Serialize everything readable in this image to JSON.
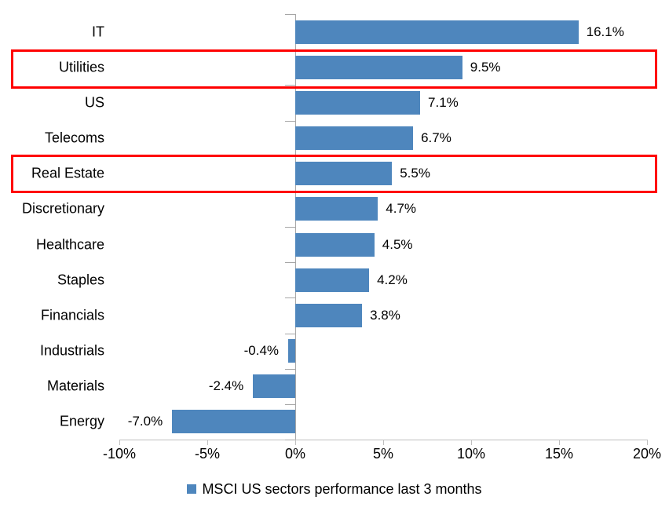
{
  "chart_data": {
    "type": "bar",
    "orientation": "horizontal",
    "categories": [
      "IT",
      "Utilities",
      "US",
      "Telecoms",
      "Real Estate",
      "Discretionary",
      "Healthcare",
      "Staples",
      "Financials",
      "Industrials",
      "Materials",
      "Energy"
    ],
    "values": [
      16.1,
      9.5,
      7.1,
      6.7,
      5.5,
      4.7,
      4.5,
      4.2,
      3.8,
      -0.4,
      -2.4,
      -7.0
    ],
    "value_labels": [
      "16.1%",
      "9.5%",
      "7.1%",
      "6.7%",
      "5.5%",
      "4.7%",
      "4.5%",
      "4.2%",
      "3.8%",
      "-0.4%",
      "-2.4%",
      "-7.0%"
    ],
    "xlim": [
      -10,
      20
    ],
    "x_tick_labels": [
      "-10%",
      "-5%",
      "0%",
      "5%",
      "10%",
      "15%",
      "20%"
    ],
    "legend": "MSCI US sectors performance last 3 months",
    "legend_position": "bottom",
    "grid": false,
    "bar_color": "#4E86BD",
    "axis_color": "#BFBFBF",
    "zero_line_color": "#A6A6A6",
    "text_color": "#000000",
    "highlight_color": "#FF0000",
    "highlighted_categories": [
      "Utilities",
      "Real Estate"
    ]
  }
}
